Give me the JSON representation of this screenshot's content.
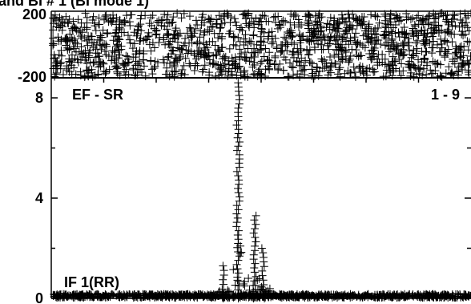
{
  "title": "and BI # 1 (BI mode 1)",
  "chart_data": [
    {
      "type": "scatter",
      "panel": "phase",
      "ylim": [
        -200,
        200
      ],
      "ytick_labels": [
        "200",
        "-200"
      ],
      "pattern": "uniformly scattered phase points across all channels"
    },
    {
      "type": "scatter",
      "panel": "amplitude",
      "baseline_label": "EF - SR",
      "channel_label": "1 - 9",
      "if_label": "IF 1(RR)",
      "ylim": [
        0,
        9
      ],
      "ytick_labels": [
        "8",
        "4",
        "0"
      ],
      "noise_level": 0.2,
      "features": [
        {
          "name": "main-peak",
          "center_fraction": 0.445,
          "peak": 8.6
        },
        {
          "name": "left-shoulder",
          "center_fraction": 0.41,
          "peak": 1.3
        },
        {
          "name": "secondary-peak",
          "center_fraction": 0.485,
          "peak": 3.3
        },
        {
          "name": "secondary-shoulder",
          "center_fraction": 0.505,
          "peak": 2.0
        }
      ]
    }
  ]
}
